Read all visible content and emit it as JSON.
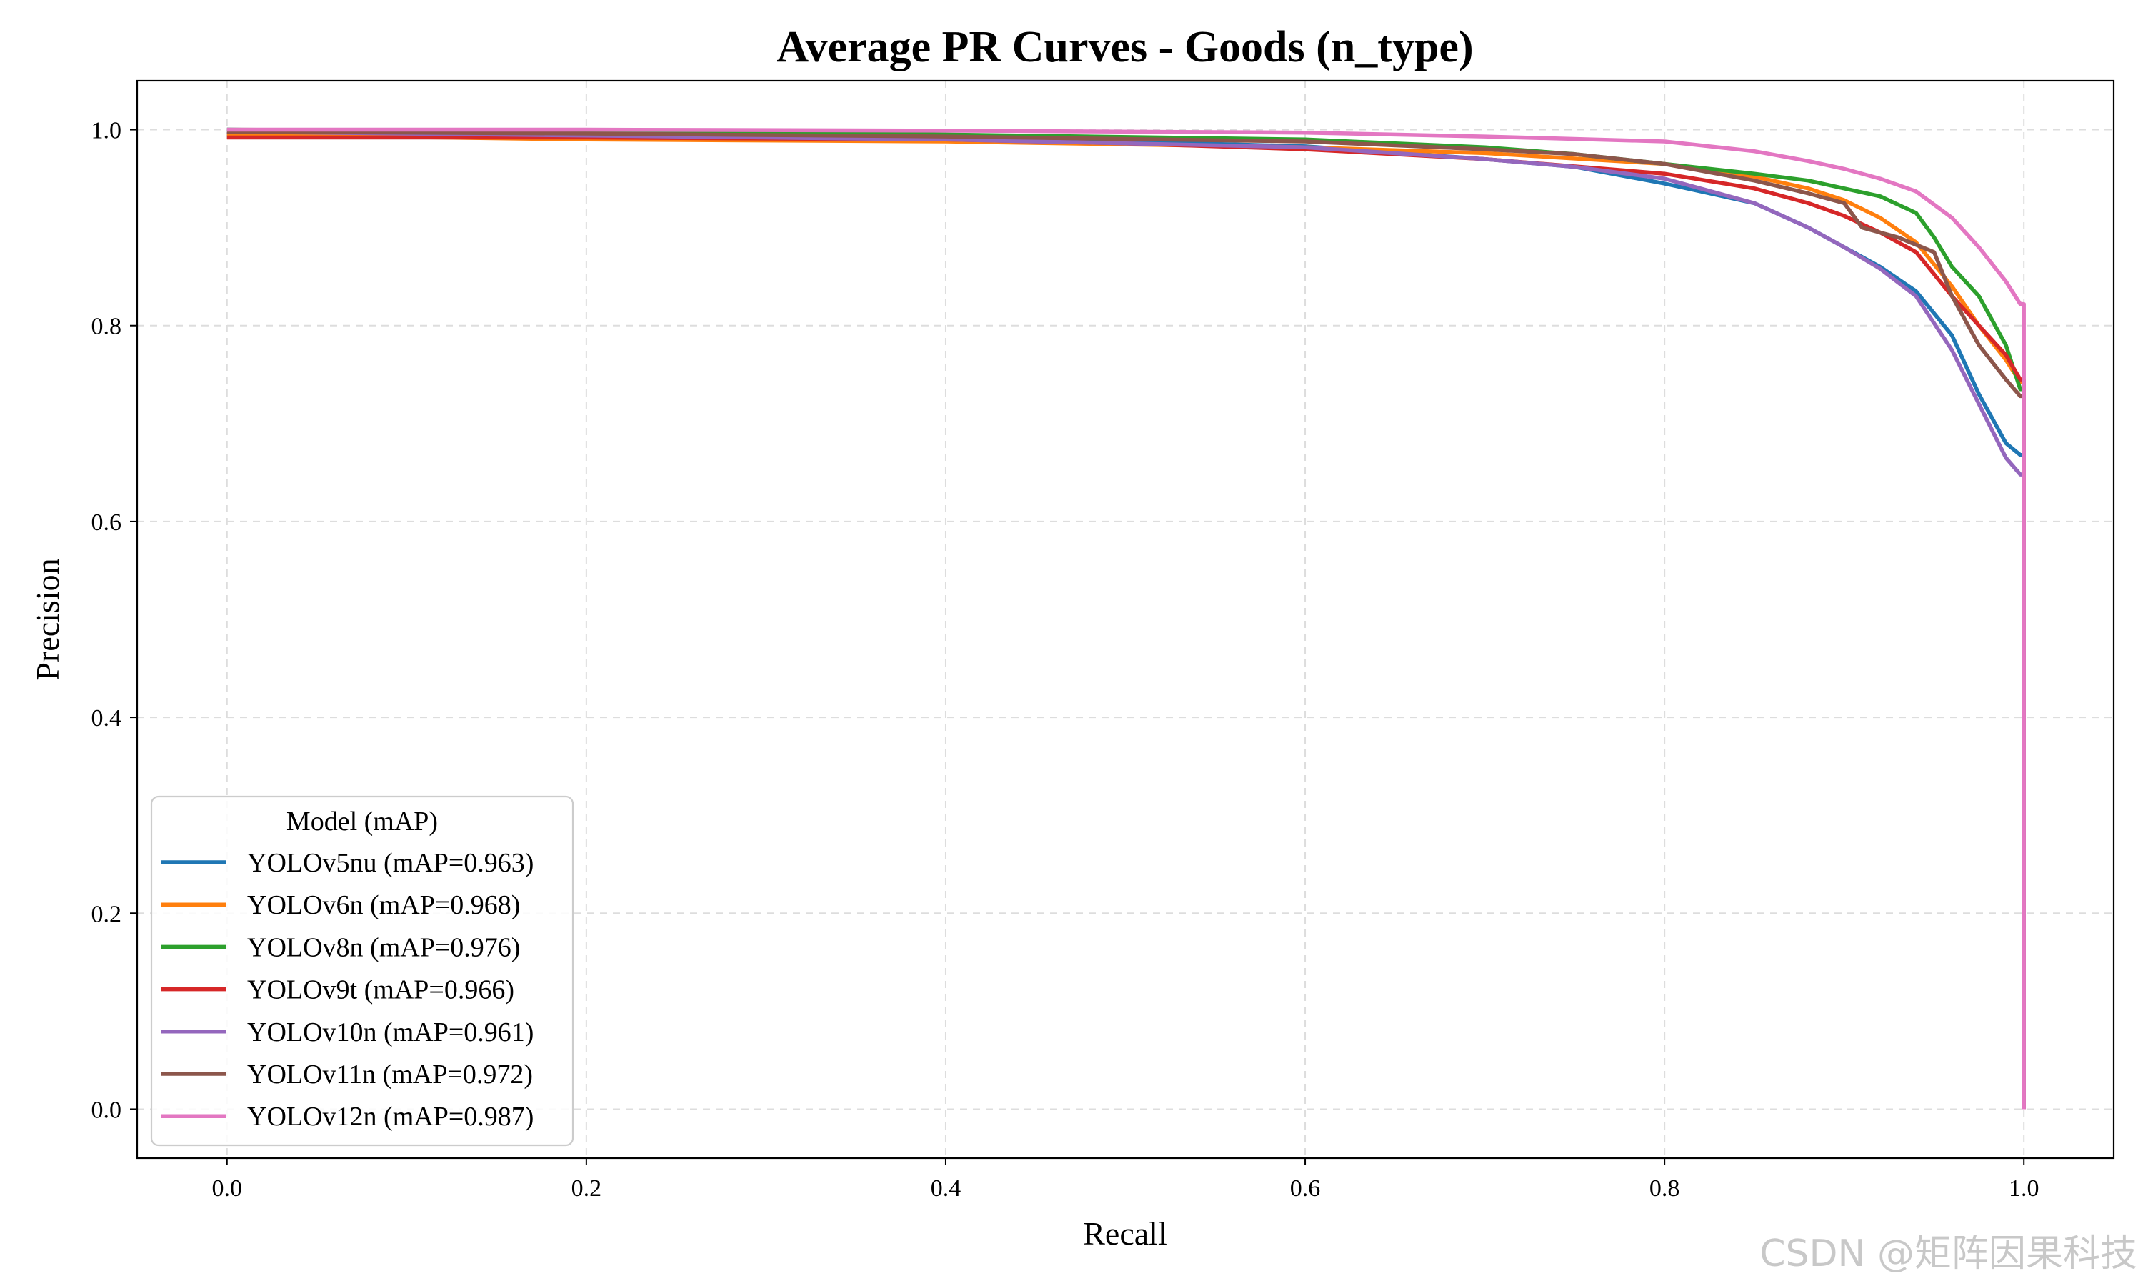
{
  "chart_data": {
    "type": "line",
    "title": "Average PR Curves - Goods (n_type)",
    "xlabel": "Recall",
    "ylabel": "Precision",
    "xlim": [
      -0.05,
      1.05
    ],
    "ylim": [
      -0.05,
      1.05
    ],
    "xticks": [
      0.0,
      0.2,
      0.4,
      0.6,
      0.8,
      1.0
    ],
    "xtick_labels": [
      "0.0",
      "0.2",
      "0.4",
      "0.6",
      "0.8",
      "1.0"
    ],
    "yticks": [
      0.0,
      0.2,
      0.4,
      0.6,
      0.8,
      1.0
    ],
    "ytick_labels": [
      "0.0",
      "0.2",
      "0.4",
      "0.6",
      "0.8",
      "1.0"
    ],
    "grid": true,
    "legend": {
      "title": "Model (mAP)",
      "position": "lower-left"
    },
    "series": [
      {
        "name": "YOLOv5nu (mAP=0.963)",
        "color": "#1f77b4",
        "points": [
          [
            0.0,
            1.0
          ],
          [
            0.2,
            0.996
          ],
          [
            0.4,
            0.99
          ],
          [
            0.5,
            0.988
          ],
          [
            0.6,
            0.983
          ],
          [
            0.7,
            0.97
          ],
          [
            0.75,
            0.962
          ],
          [
            0.8,
            0.945
          ],
          [
            0.85,
            0.925
          ],
          [
            0.88,
            0.9
          ],
          [
            0.9,
            0.88
          ],
          [
            0.92,
            0.86
          ],
          [
            0.94,
            0.835
          ],
          [
            0.96,
            0.79
          ],
          [
            0.975,
            0.73
          ],
          [
            0.99,
            0.68
          ],
          [
            0.998,
            0.668
          ],
          [
            1.0,
            0.668
          ],
          [
            1.0,
            0.0
          ]
        ]
      },
      {
        "name": "YOLOv6n (mAP=0.968)",
        "color": "#ff7f0e",
        "points": [
          [
            0.0,
            0.995
          ],
          [
            0.2,
            0.99
          ],
          [
            0.4,
            0.988
          ],
          [
            0.6,
            0.982
          ],
          [
            0.7,
            0.976
          ],
          [
            0.8,
            0.965
          ],
          [
            0.85,
            0.952
          ],
          [
            0.88,
            0.94
          ],
          [
            0.9,
            0.928
          ],
          [
            0.92,
            0.91
          ],
          [
            0.94,
            0.885
          ],
          [
            0.96,
            0.84
          ],
          [
            0.975,
            0.8
          ],
          [
            0.99,
            0.765
          ],
          [
            0.998,
            0.742
          ],
          [
            1.0,
            0.742
          ],
          [
            1.0,
            0.0
          ]
        ]
      },
      {
        "name": "YOLOv8n (mAP=0.976)",
        "color": "#2ca02c",
        "points": [
          [
            0.0,
            1.0
          ],
          [
            0.2,
            0.998
          ],
          [
            0.4,
            0.995
          ],
          [
            0.6,
            0.99
          ],
          [
            0.7,
            0.982
          ],
          [
            0.75,
            0.975
          ],
          [
            0.8,
            0.965
          ],
          [
            0.85,
            0.955
          ],
          [
            0.88,
            0.948
          ],
          [
            0.9,
            0.94
          ],
          [
            0.92,
            0.932
          ],
          [
            0.94,
            0.915
          ],
          [
            0.95,
            0.89
          ],
          [
            0.96,
            0.86
          ],
          [
            0.975,
            0.83
          ],
          [
            0.99,
            0.78
          ],
          [
            0.998,
            0.735
          ],
          [
            1.0,
            0.735
          ],
          [
            1.0,
            0.0
          ]
        ]
      },
      {
        "name": "YOLOv9t (mAP=0.966)",
        "color": "#d62728",
        "points": [
          [
            0.0,
            0.992
          ],
          [
            0.2,
            0.992
          ],
          [
            0.4,
            0.99
          ],
          [
            0.5,
            0.986
          ],
          [
            0.6,
            0.98
          ],
          [
            0.7,
            0.97
          ],
          [
            0.8,
            0.955
          ],
          [
            0.85,
            0.94
          ],
          [
            0.88,
            0.925
          ],
          [
            0.9,
            0.912
          ],
          [
            0.92,
            0.895
          ],
          [
            0.94,
            0.875
          ],
          [
            0.96,
            0.83
          ],
          [
            0.975,
            0.8
          ],
          [
            0.99,
            0.77
          ],
          [
            0.998,
            0.745
          ],
          [
            1.0,
            0.745
          ],
          [
            1.0,
            0.0
          ]
        ]
      },
      {
        "name": "YOLOv10n (mAP=0.961)",
        "color": "#9467bd",
        "points": [
          [
            0.0,
            0.998
          ],
          [
            0.2,
            0.994
          ],
          [
            0.4,
            0.99
          ],
          [
            0.6,
            0.982
          ],
          [
            0.7,
            0.97
          ],
          [
            0.75,
            0.962
          ],
          [
            0.8,
            0.95
          ],
          [
            0.85,
            0.925
          ],
          [
            0.88,
            0.9
          ],
          [
            0.9,
            0.88
          ],
          [
            0.92,
            0.858
          ],
          [
            0.94,
            0.83
          ],
          [
            0.96,
            0.775
          ],
          [
            0.975,
            0.72
          ],
          [
            0.99,
            0.665
          ],
          [
            0.998,
            0.648
          ],
          [
            1.0,
            0.648
          ],
          [
            1.0,
            0.0
          ]
        ]
      },
      {
        "name": "YOLOv11n (mAP=0.972)",
        "color": "#8c564b",
        "points": [
          [
            0.0,
            0.998
          ],
          [
            0.2,
            0.996
          ],
          [
            0.4,
            0.993
          ],
          [
            0.6,
            0.988
          ],
          [
            0.7,
            0.98
          ],
          [
            0.75,
            0.975
          ],
          [
            0.8,
            0.965
          ],
          [
            0.85,
            0.948
          ],
          [
            0.88,
            0.935
          ],
          [
            0.9,
            0.925
          ],
          [
            0.91,
            0.9
          ],
          [
            0.93,
            0.89
          ],
          [
            0.95,
            0.875
          ],
          [
            0.96,
            0.83
          ],
          [
            0.975,
            0.78
          ],
          [
            0.99,
            0.745
          ],
          [
            0.998,
            0.728
          ],
          [
            1.0,
            0.728
          ],
          [
            1.0,
            0.0
          ]
        ]
      },
      {
        "name": "YOLOv12n (mAP=0.987)",
        "color": "#e377c2",
        "points": [
          [
            0.0,
            1.0
          ],
          [
            0.2,
            1.0
          ],
          [
            0.4,
            0.999
          ],
          [
            0.6,
            0.997
          ],
          [
            0.7,
            0.993
          ],
          [
            0.8,
            0.988
          ],
          [
            0.85,
            0.978
          ],
          [
            0.88,
            0.968
          ],
          [
            0.9,
            0.96
          ],
          [
            0.92,
            0.95
          ],
          [
            0.94,
            0.937
          ],
          [
            0.96,
            0.91
          ],
          [
            0.975,
            0.88
          ],
          [
            0.99,
            0.845
          ],
          [
            0.998,
            0.822
          ],
          [
            1.0,
            0.822
          ],
          [
            1.0,
            0.0
          ]
        ]
      }
    ]
  },
  "watermark": "CSDN @矩阵因果科技"
}
